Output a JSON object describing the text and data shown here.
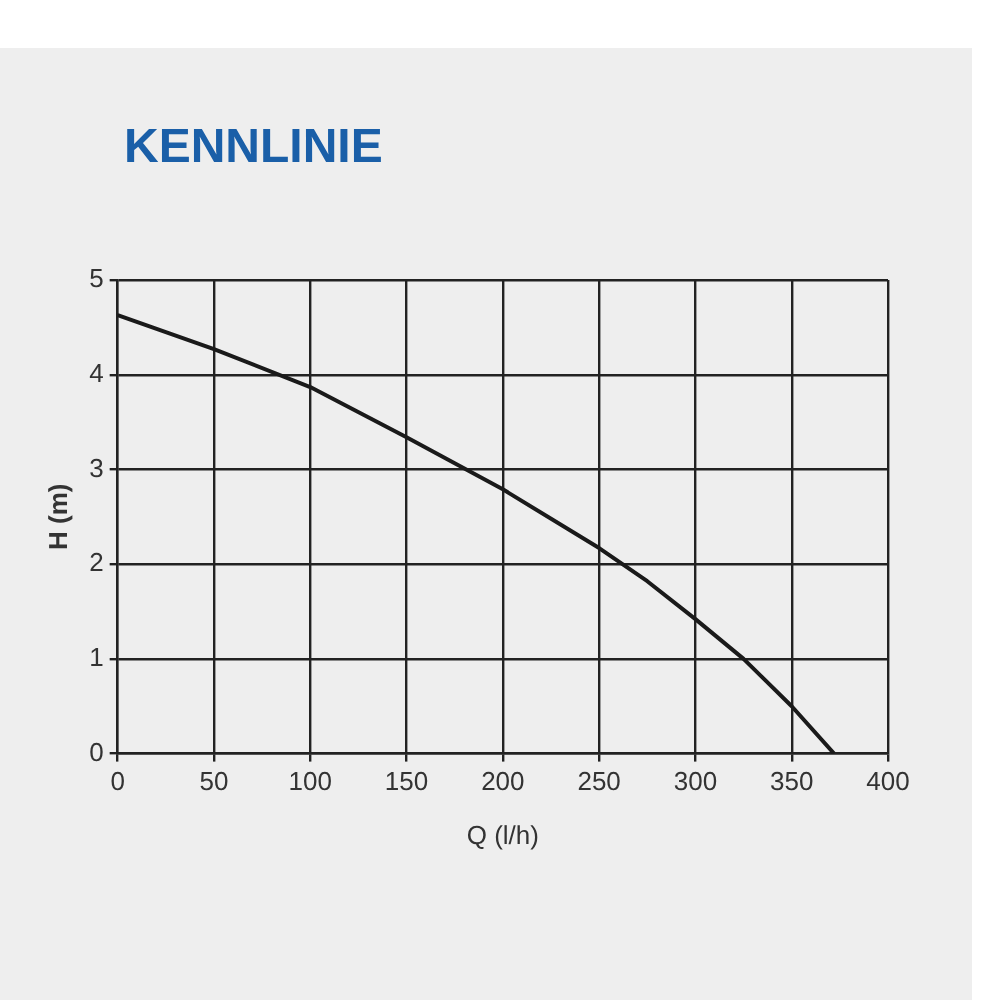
{
  "chart_data": {
    "type": "line",
    "title": "KENNLINIE",
    "xlabel": "Q (l/h)",
    "ylabel": "H (m)",
    "x": [
      0,
      50,
      100,
      150,
      200,
      250,
      275,
      300,
      325,
      350,
      372
    ],
    "series": [
      {
        "color": "#1a1a1a",
        "values": [
          4.63,
          4.27,
          3.87,
          3.34,
          2.79,
          2.17,
          1.82,
          1.42,
          1.0,
          0.5,
          0
        ]
      }
    ],
    "xlim": [
      0,
      400
    ],
    "xticks": [
      0,
      50,
      100,
      150,
      200,
      250,
      300,
      350,
      400
    ],
    "ylim": [
      0,
      5
    ],
    "yticks": [
      0,
      1,
      2,
      3,
      4,
      5
    ],
    "grid": true,
    "legend": false,
    "marker": "none",
    "line_style": "solid"
  }
}
